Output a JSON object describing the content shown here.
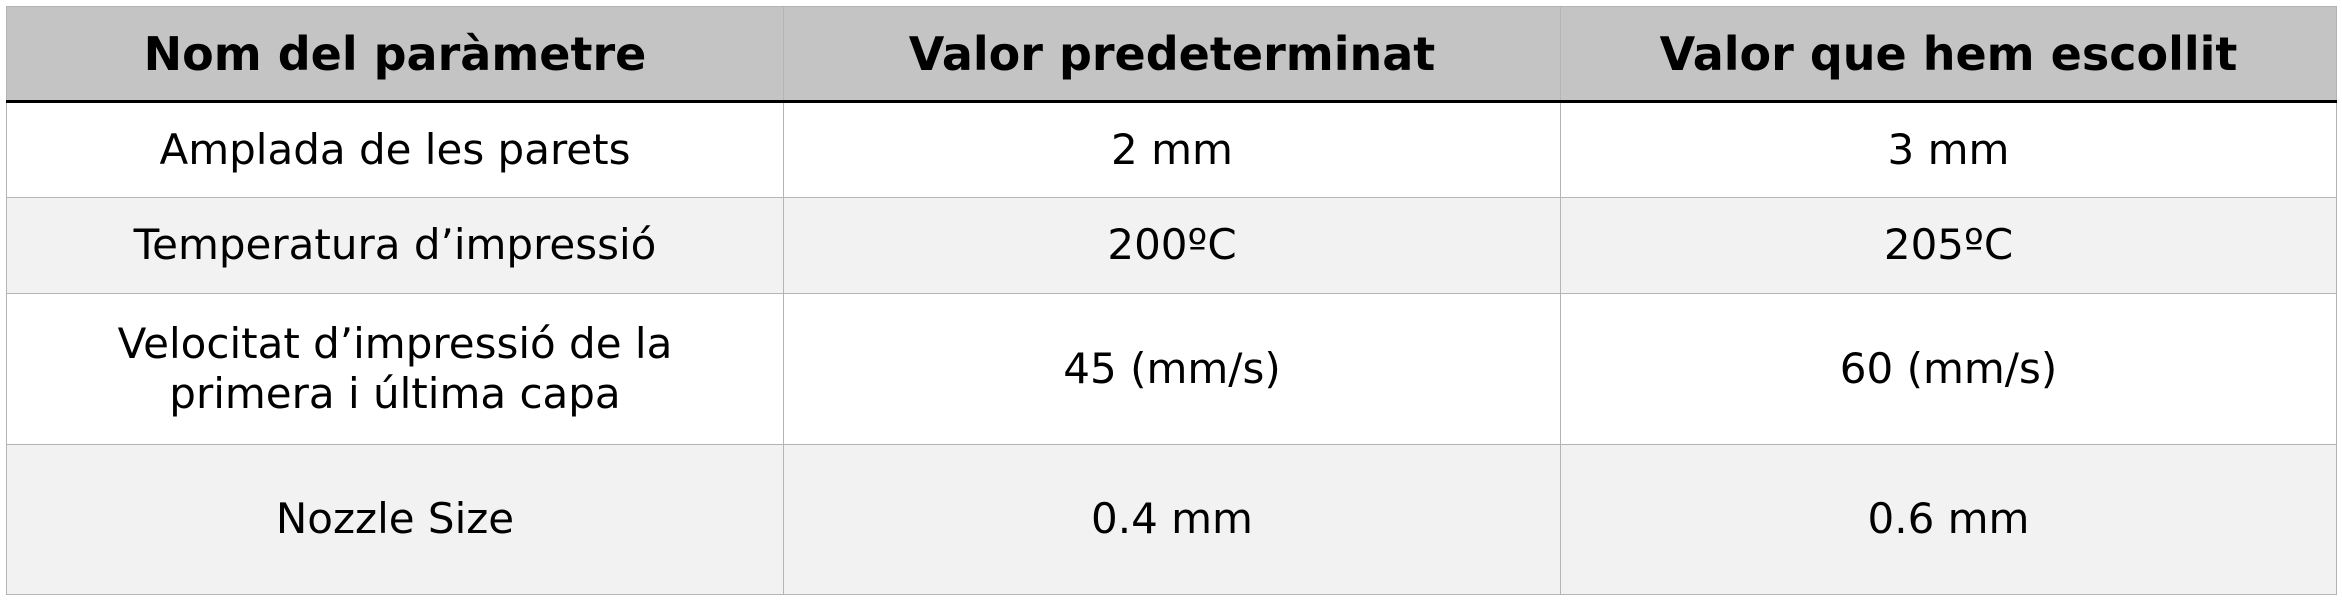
{
  "table": {
    "headers": [
      "Nom del paràmetre",
      "Valor predeterminat",
      "Valor que hem escollit"
    ],
    "rows": [
      [
        "Amplada de les parets",
        "2 mm",
        "3 mm"
      ],
      [
        "Temperatura d’impressió",
        "200ºC",
        "205ºC"
      ],
      [
        "Velocitat d’impressió de la primera i última capa",
        "45 (mm/s)",
        "60 (mm/s)"
      ],
      [
        "Nozzle Size",
        "0.4 mm",
        "0.6 mm"
      ]
    ]
  },
  "colors": {
    "header_background": "#c4c4c4",
    "row_stripe": "#f2f2f2",
    "grid_line": "#b4b4b4",
    "header_rule": "#000000"
  }
}
